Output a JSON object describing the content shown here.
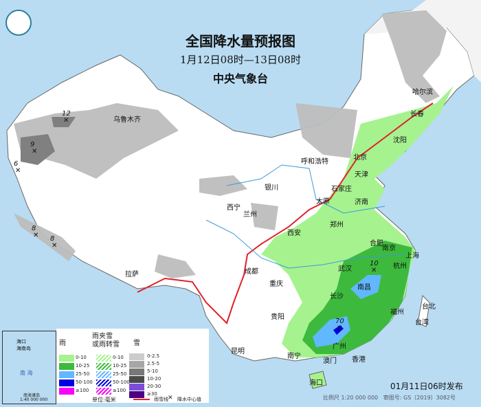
{
  "header": {
    "title": "全国降水量预报图",
    "period": "1月12日08时—13日08时",
    "issuer": "中央气象台",
    "logo_icon": "cma-logo"
  },
  "cities": [
    {
      "name": "乌鲁木齐"
    },
    {
      "name": "哈尔滨"
    },
    {
      "name": "长春"
    },
    {
      "name": "沈阳"
    },
    {
      "name": "北京"
    },
    {
      "name": "天津"
    },
    {
      "name": "呼和浩特"
    },
    {
      "name": "银川"
    },
    {
      "name": "石家庄"
    },
    {
      "name": "太原"
    },
    {
      "name": "济南"
    },
    {
      "name": "西宁"
    },
    {
      "name": "兰州"
    },
    {
      "name": "郑州"
    },
    {
      "name": "西安"
    },
    {
      "name": "合肥"
    },
    {
      "name": "南京"
    },
    {
      "name": "上海"
    },
    {
      "name": "武汉"
    },
    {
      "name": "杭州"
    },
    {
      "name": "成都"
    },
    {
      "name": "重庆"
    },
    {
      "name": "拉萨"
    },
    {
      "name": "长沙"
    },
    {
      "name": "南昌"
    },
    {
      "name": "福州"
    },
    {
      "name": "台北"
    },
    {
      "name": "贵阳"
    },
    {
      "name": "台湾"
    },
    {
      "name": "昆明"
    },
    {
      "name": "南宁"
    },
    {
      "name": "广州"
    },
    {
      "name": "香港"
    },
    {
      "name": "澳门"
    },
    {
      "name": "海口"
    }
  ],
  "precip_centers": [
    "12",
    "9",
    "6",
    "8",
    "8",
    "10",
    "70"
  ],
  "legend": {
    "rain": {
      "title": "雨",
      "items": [
        "0-10",
        "10-25",
        "25-50",
        "50-100",
        "≥100"
      ],
      "colors": [
        "#a6f28f",
        "#3dba3d",
        "#61b8ff",
        "#0000e1",
        "#fa00fa"
      ]
    },
    "mixed": {
      "title1": "雨夹雪",
      "title2": "或雨转雪",
      "items": [
        "0-10",
        "10-25",
        "25-50",
        "50-100",
        "≥100"
      ]
    },
    "snow": {
      "title": "雪",
      "items": [
        "0-2.5",
        "2.5-5",
        "5-10",
        "10-20",
        "20-30",
        "≥30"
      ],
      "colors": [
        "#cccccc",
        "#a6a6a6",
        "#787878",
        "#4a4a4a",
        "#7b4ddb",
        "#4b0082"
      ]
    },
    "unit": "单位:毫米",
    "front_label": "雨雪线",
    "center_label": "降水中心值"
  },
  "inset": {
    "label1": "海口",
    "label2": "海南岛",
    "sea": "南 海",
    "scale": "南海诸岛",
    "scale2": "1:40 000 000"
  },
  "footer": {
    "published": "01月11日06时发布",
    "scale": "比例尺 1:20 000 000",
    "review": "审图号: GS（2019）3082号"
  }
}
